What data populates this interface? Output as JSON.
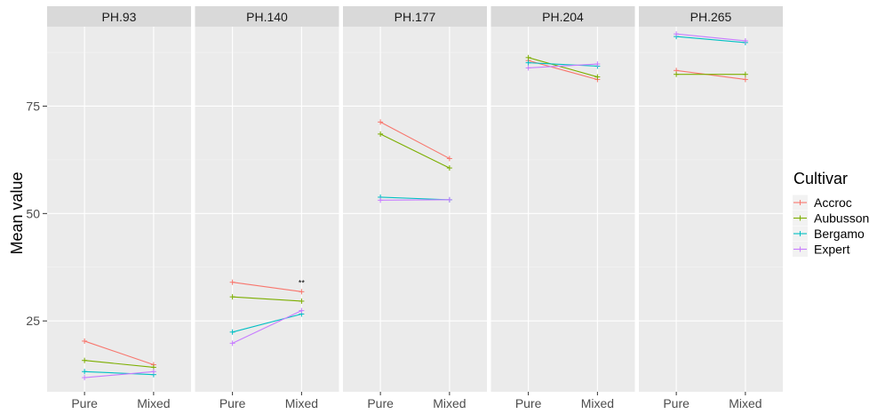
{
  "chart_data": {
    "type": "line",
    "title": "",
    "xlabel": "",
    "ylabel": "Mean value",
    "ylim": [
      8.5,
      93.5
    ],
    "yticks": [
      25,
      50,
      75
    ],
    "x_categories": [
      "Pure",
      "Mixed"
    ],
    "panels": [
      {
        "name": "PH.93",
        "series": [
          {
            "name": "Accroc",
            "values": [
              20.3,
              14.8
            ]
          },
          {
            "name": "Aubusson",
            "values": [
              15.8,
              14.2
            ]
          },
          {
            "name": "Bergamo",
            "values": [
              13.2,
              12.5
            ]
          },
          {
            "name": "Expert",
            "values": [
              11.8,
              13.2
            ]
          }
        ]
      },
      {
        "name": "PH.140",
        "series": [
          {
            "name": "Accroc",
            "values": [
              34.0,
              31.8
            ]
          },
          {
            "name": "Aubusson",
            "values": [
              30.6,
              29.6
            ]
          },
          {
            "name": "Bergamo",
            "values": [
              22.4,
              26.6
            ]
          },
          {
            "name": "Expert",
            "values": [
              19.8,
              27.4
            ]
          }
        ],
        "annotation": {
          "text": "**",
          "x": "Mixed",
          "y": 33.2
        }
      },
      {
        "name": "PH.177",
        "series": [
          {
            "name": "Accroc",
            "values": [
              71.3,
              62.8
            ]
          },
          {
            "name": "Aubusson",
            "values": [
              68.5,
              60.6
            ]
          },
          {
            "name": "Bergamo",
            "values": [
              53.8,
              53.2
            ]
          },
          {
            "name": "Expert",
            "values": [
              53.1,
              53.2
            ]
          }
        ]
      },
      {
        "name": "PH.204",
        "series": [
          {
            "name": "Accroc",
            "values": [
              85.6,
              81.2
            ]
          },
          {
            "name": "Aubusson",
            "values": [
              86.3,
              81.8
            ]
          },
          {
            "name": "Bergamo",
            "values": [
              85.1,
              84.3
            ]
          },
          {
            "name": "Expert",
            "values": [
              83.9,
              84.8
            ]
          }
        ]
      },
      {
        "name": "PH.265",
        "series": [
          {
            "name": "Accroc",
            "values": [
              83.3,
              81.2
            ]
          },
          {
            "name": "Aubusson",
            "values": [
              82.4,
              82.4
            ]
          },
          {
            "name": "Bergamo",
            "values": [
              91.2,
              89.8
            ]
          },
          {
            "name": "Expert",
            "values": [
              91.8,
              90.2
            ]
          }
        ]
      }
    ],
    "legend": {
      "title": "Cultivar",
      "placement": "right",
      "entries": [
        "Accroc",
        "Aubusson",
        "Bergamo",
        "Expert"
      ]
    },
    "colors": {
      "Accroc": "#F8766D",
      "Aubusson": "#7CAE00",
      "Bergamo": "#00BFC4",
      "Expert": "#C77CFF"
    },
    "grid": true
  }
}
